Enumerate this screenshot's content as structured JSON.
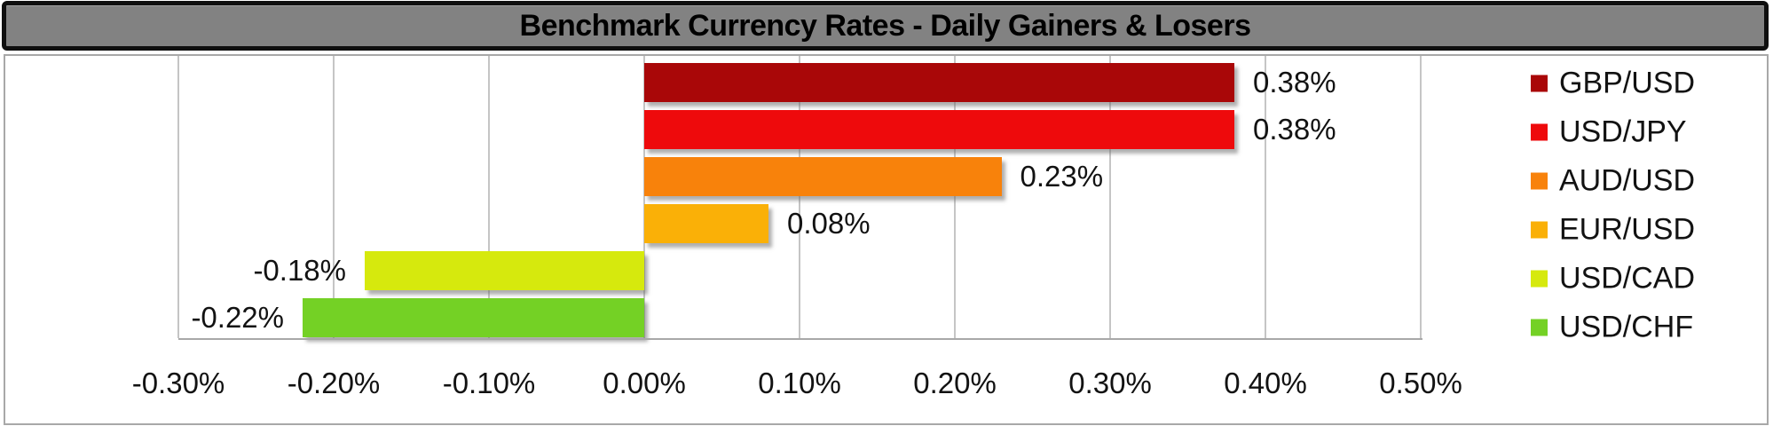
{
  "title": "Benchmark Currency Rates - Daily Gainers & Losers",
  "colors": {
    "title_bar_bg": "#828282",
    "title_bar_border": "#0f0f0f",
    "title_text": "#000000",
    "chart_border": "#a8a8a8",
    "gridline": "#c5c5c5",
    "axis_line": "#a8a8a8",
    "label_text": "#121212"
  },
  "chart_data": {
    "type": "bar",
    "orientation": "horizontal",
    "title": "Benchmark Currency Rates - Daily Gainers & Losers",
    "categories": [
      "GBP/USD",
      "USD/JPY",
      "AUD/USD",
      "EUR/USD",
      "USD/CAD",
      "USD/CHF"
    ],
    "values": [
      0.38,
      0.38,
      0.23,
      0.08,
      -0.18,
      -0.22
    ],
    "value_labels": [
      "0.38%",
      "0.38%",
      "0.23%",
      "0.08%",
      "-0.18%",
      "-0.22%"
    ],
    "bar_colors": [
      "#a90708",
      "#ee0a0c",
      "#f8820b",
      "#fab007",
      "#d6e90d",
      "#74d125"
    ],
    "xlabel": "",
    "ylabel": "",
    "xlim": [
      -0.3,
      0.5
    ],
    "x_tick_step": 0.1,
    "x_tick_labels": [
      "-0.30%",
      "-0.20%",
      "-0.10%",
      "0.00%",
      "0.10%",
      "0.20%",
      "0.30%",
      "0.40%",
      "0.50%"
    ],
    "grid": true,
    "legend_position": "right",
    "legend": [
      {
        "label": "GBP/USD",
        "color": "#a90708"
      },
      {
        "label": "USD/JPY",
        "color": "#ee0a0c"
      },
      {
        "label": "AUD/USD",
        "color": "#f8820b"
      },
      {
        "label": "EUR/USD",
        "color": "#fab007"
      },
      {
        "label": "USD/CAD",
        "color": "#d6e90d"
      },
      {
        "label": "USD/CHF",
        "color": "#74d125"
      }
    ]
  }
}
